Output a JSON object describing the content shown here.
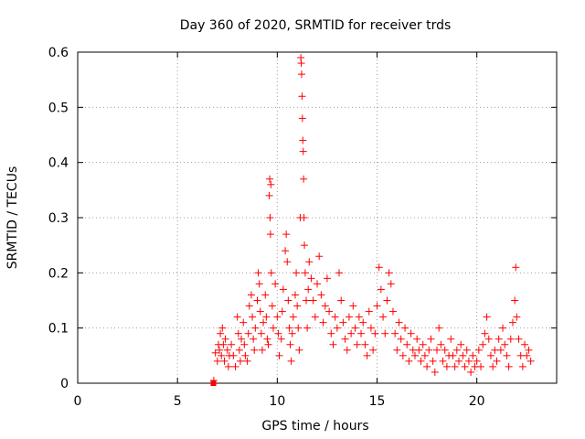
{
  "chart_data": {
    "type": "scatter",
    "title": "Day 360 of 2020, SRMTID for receiver trds",
    "xlabel": "GPS time / hours",
    "ylabel": "SRMTID / TECUs",
    "xlim": [
      0,
      24
    ],
    "ylim": [
      0,
      0.6
    ],
    "x_ticks": [
      0,
      5,
      10,
      15,
      20
    ],
    "x_tick_labels": [
      "0",
      "5",
      "10",
      "15",
      "20"
    ],
    "y_ticks": [
      0,
      0.1,
      0.2,
      0.3,
      0.4,
      0.5,
      0.6
    ],
    "y_tick_labels": [
      "0",
      "0.1",
      "0.2",
      "0.3",
      "0.4",
      "0.5",
      "0.6"
    ],
    "grid": true,
    "marker": "+",
    "color": "#ff0000",
    "series": [
      {
        "name": "SRMTID",
        "points": [
          [
            6.8,
            0.0
          ],
          [
            6.82,
            0.005
          ],
          [
            6.9,
            0.055
          ],
          [
            7.0,
            0.04
          ],
          [
            7.05,
            0.07
          ],
          [
            7.1,
            0.06
          ],
          [
            7.15,
            0.09
          ],
          [
            7.2,
            0.05
          ],
          [
            7.25,
            0.1
          ],
          [
            7.3,
            0.07
          ],
          [
            7.35,
            0.04
          ],
          [
            7.4,
            0.08
          ],
          [
            7.5,
            0.06
          ],
          [
            7.55,
            0.03
          ],
          [
            7.6,
            0.05
          ],
          [
            7.7,
            0.07
          ],
          [
            7.8,
            0.05
          ],
          [
            7.9,
            0.03
          ],
          [
            8.0,
            0.12
          ],
          [
            8.05,
            0.09
          ],
          [
            8.1,
            0.06
          ],
          [
            8.15,
            0.04
          ],
          [
            8.2,
            0.08
          ],
          [
            8.3,
            0.11
          ],
          [
            8.35,
            0.07
          ],
          [
            8.4,
            0.05
          ],
          [
            8.5,
            0.04
          ],
          [
            8.55,
            0.09
          ],
          [
            8.6,
            0.14
          ],
          [
            8.7,
            0.16
          ],
          [
            8.75,
            0.12
          ],
          [
            8.8,
            0.08
          ],
          [
            8.85,
            0.06
          ],
          [
            8.9,
            0.1
          ],
          [
            9.0,
            0.15
          ],
          [
            9.05,
            0.2
          ],
          [
            9.1,
            0.18
          ],
          [
            9.15,
            0.13
          ],
          [
            9.2,
            0.09
          ],
          [
            9.25,
            0.06
          ],
          [
            9.3,
            0.11
          ],
          [
            9.4,
            0.16
          ],
          [
            9.45,
            0.12
          ],
          [
            9.5,
            0.08
          ],
          [
            9.55,
            0.07
          ],
          [
            9.6,
            0.34
          ],
          [
            9.62,
            0.37
          ],
          [
            9.64,
            0.3
          ],
          [
            9.66,
            0.27
          ],
          [
            9.68,
            0.36
          ],
          [
            9.7,
            0.2
          ],
          [
            9.75,
            0.14
          ],
          [
            9.8,
            0.1
          ],
          [
            9.9,
            0.18
          ],
          [
            10.0,
            0.12
          ],
          [
            10.05,
            0.09
          ],
          [
            10.1,
            0.05
          ],
          [
            10.2,
            0.08
          ],
          [
            10.25,
            0.13
          ],
          [
            10.3,
            0.17
          ],
          [
            10.4,
            0.24
          ],
          [
            10.45,
            0.27
          ],
          [
            10.5,
            0.22
          ],
          [
            10.55,
            0.15
          ],
          [
            10.6,
            0.1
          ],
          [
            10.65,
            0.07
          ],
          [
            10.7,
            0.04
          ],
          [
            10.75,
            0.09
          ],
          [
            10.8,
            0.12
          ],
          [
            10.9,
            0.16
          ],
          [
            10.95,
            0.2
          ],
          [
            11.0,
            0.14
          ],
          [
            11.05,
            0.1
          ],
          [
            11.1,
            0.06
          ],
          [
            11.15,
            0.3
          ],
          [
            11.18,
            0.59
          ],
          [
            11.2,
            0.58
          ],
          [
            11.22,
            0.56
          ],
          [
            11.24,
            0.52
          ],
          [
            11.26,
            0.48
          ],
          [
            11.28,
            0.44
          ],
          [
            11.3,
            0.42
          ],
          [
            11.32,
            0.37
          ],
          [
            11.34,
            0.3
          ],
          [
            11.36,
            0.25
          ],
          [
            11.4,
            0.2
          ],
          [
            11.45,
            0.15
          ],
          [
            11.5,
            0.1
          ],
          [
            11.55,
            0.17
          ],
          [
            11.6,
            0.22
          ],
          [
            11.7,
            0.19
          ],
          [
            11.8,
            0.15
          ],
          [
            11.9,
            0.12
          ],
          [
            12.0,
            0.18
          ],
          [
            12.1,
            0.23
          ],
          [
            12.2,
            0.16
          ],
          [
            12.3,
            0.11
          ],
          [
            12.4,
            0.14
          ],
          [
            12.5,
            0.19
          ],
          [
            12.6,
            0.13
          ],
          [
            12.7,
            0.09
          ],
          [
            12.8,
            0.07
          ],
          [
            12.9,
            0.12
          ],
          [
            13.0,
            0.1
          ],
          [
            13.1,
            0.2
          ],
          [
            13.2,
            0.15
          ],
          [
            13.3,
            0.11
          ],
          [
            13.4,
            0.08
          ],
          [
            13.5,
            0.06
          ],
          [
            13.6,
            0.12
          ],
          [
            13.7,
            0.09
          ],
          [
            13.8,
            0.14
          ],
          [
            13.9,
            0.1
          ],
          [
            14.0,
            0.07
          ],
          [
            14.1,
            0.12
          ],
          [
            14.2,
            0.09
          ],
          [
            14.3,
            0.11
          ],
          [
            14.4,
            0.07
          ],
          [
            14.5,
            0.05
          ],
          [
            14.6,
            0.13
          ],
          [
            14.7,
            0.1
          ],
          [
            14.8,
            0.06
          ],
          [
            14.9,
            0.09
          ],
          [
            15.0,
            0.14
          ],
          [
            15.1,
            0.21
          ],
          [
            15.2,
            0.17
          ],
          [
            15.3,
            0.12
          ],
          [
            15.4,
            0.09
          ],
          [
            15.5,
            0.15
          ],
          [
            15.6,
            0.2
          ],
          [
            15.7,
            0.18
          ],
          [
            15.8,
            0.13
          ],
          [
            15.9,
            0.09
          ],
          [
            16.0,
            0.06
          ],
          [
            16.1,
            0.11
          ],
          [
            16.2,
            0.08
          ],
          [
            16.3,
            0.05
          ],
          [
            16.4,
            0.1
          ],
          [
            16.5,
            0.07
          ],
          [
            16.6,
            0.04
          ],
          [
            16.7,
            0.09
          ],
          [
            16.8,
            0.06
          ],
          [
            16.9,
            0.05
          ],
          [
            17.0,
            0.08
          ],
          [
            17.1,
            0.06
          ],
          [
            17.2,
            0.04
          ],
          [
            17.3,
            0.07
          ],
          [
            17.4,
            0.05
          ],
          [
            17.5,
            0.03
          ],
          [
            17.6,
            0.06
          ],
          [
            17.7,
            0.08
          ],
          [
            17.8,
            0.04
          ],
          [
            17.9,
            0.02
          ],
          [
            18.0,
            0.06
          ],
          [
            18.1,
            0.1
          ],
          [
            18.2,
            0.07
          ],
          [
            18.3,
            0.04
          ],
          [
            18.4,
            0.06
          ],
          [
            18.5,
            0.03
          ],
          [
            18.6,
            0.05
          ],
          [
            18.7,
            0.08
          ],
          [
            18.8,
            0.05
          ],
          [
            18.9,
            0.03
          ],
          [
            19.0,
            0.06
          ],
          [
            19.1,
            0.04
          ],
          [
            19.2,
            0.07
          ],
          [
            19.3,
            0.05
          ],
          [
            19.4,
            0.03
          ],
          [
            19.5,
            0.06
          ],
          [
            19.6,
            0.04
          ],
          [
            19.7,
            0.02
          ],
          [
            19.8,
            0.05
          ],
          [
            19.9,
            0.03
          ],
          [
            20.0,
            0.04
          ],
          [
            20.1,
            0.06
          ],
          [
            20.2,
            0.03
          ],
          [
            20.3,
            0.07
          ],
          [
            20.4,
            0.09
          ],
          [
            20.5,
            0.12
          ],
          [
            20.6,
            0.08
          ],
          [
            20.7,
            0.05
          ],
          [
            20.8,
            0.03
          ],
          [
            20.9,
            0.06
          ],
          [
            21.0,
            0.04
          ],
          [
            21.1,
            0.08
          ],
          [
            21.2,
            0.06
          ],
          [
            21.3,
            0.1
          ],
          [
            21.4,
            0.07
          ],
          [
            21.5,
            0.05
          ],
          [
            21.6,
            0.03
          ],
          [
            21.7,
            0.08
          ],
          [
            21.8,
            0.11
          ],
          [
            21.9,
            0.15
          ],
          [
            21.95,
            0.21
          ],
          [
            22.0,
            0.12
          ],
          [
            22.1,
            0.08
          ],
          [
            22.2,
            0.05
          ],
          [
            22.3,
            0.03
          ],
          [
            22.4,
            0.07
          ],
          [
            22.5,
            0.05
          ],
          [
            22.6,
            0.06
          ],
          [
            22.7,
            0.04
          ]
        ]
      }
    ]
  }
}
